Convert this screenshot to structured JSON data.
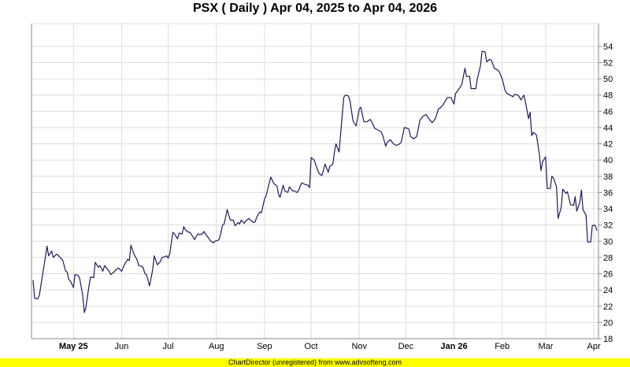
{
  "chart_data": {
    "type": "line",
    "title": "PSX ( Daily ) Apr 04, 2025 to Apr 04, 2026",
    "xlabel": "",
    "ylabel": "",
    "xlim": [
      "2025-04-04",
      "2026-04-04"
    ],
    "ylim": [
      18,
      56.8
    ],
    "y_axis_side": "right",
    "y_ticks": [
      18,
      20,
      22,
      24,
      26,
      28,
      30,
      32,
      34,
      36,
      38,
      40,
      42,
      44,
      46,
      48,
      50,
      52,
      54
    ],
    "x_ticks": [
      {
        "date": "2025-05-01",
        "label": "May 25",
        "bold": true
      },
      {
        "date": "2025-06-01",
        "label": "Jun",
        "bold": false
      },
      {
        "date": "2025-07-01",
        "label": "Jul",
        "bold": false
      },
      {
        "date": "2025-08-01",
        "label": "Aug",
        "bold": false
      },
      {
        "date": "2025-09-01",
        "label": "Sep",
        "bold": false
      },
      {
        "date": "2025-10-01",
        "label": "Oct",
        "bold": false
      },
      {
        "date": "2025-11-01",
        "label": "Nov",
        "bold": false
      },
      {
        "date": "2025-12-01",
        "label": "Dec",
        "bold": false
      },
      {
        "date": "2026-01-01",
        "label": "Jan 26",
        "bold": true
      },
      {
        "date": "2026-02-01",
        "label": "Feb",
        "bold": false
      },
      {
        "date": "2026-03-01",
        "label": "Mar",
        "bold": false
      },
      {
        "date": "2026-04-01",
        "label": "Apr",
        "bold": false
      }
    ],
    "grid": true,
    "line_color": "#1c1c5a",
    "grid_color": "#dddddd",
    "series": [
      {
        "points": [
          [
            "2025-04-05",
            25.2
          ],
          [
            "2025-04-06",
            23.0
          ],
          [
            "2025-04-08",
            22.9
          ],
          [
            "2025-04-09",
            23.3
          ],
          [
            "2025-04-12",
            26.9
          ],
          [
            "2025-04-14",
            29.4
          ],
          [
            "2025-04-15",
            28.2
          ],
          [
            "2025-04-17",
            28.8
          ],
          [
            "2025-04-18",
            28.0
          ],
          [
            "2025-04-20",
            28.4
          ],
          [
            "2025-04-21",
            28.3
          ],
          [
            "2025-04-23",
            27.9
          ],
          [
            "2025-04-24",
            27.7
          ],
          [
            "2025-04-26",
            26.3
          ],
          [
            "2025-04-27",
            26.2
          ],
          [
            "2025-04-28",
            25.3
          ],
          [
            "2025-04-29",
            25.1
          ],
          [
            "2025-05-01",
            24.3
          ],
          [
            "2025-05-02",
            25.9
          ],
          [
            "2025-05-04",
            25.8
          ],
          [
            "2025-05-05",
            25.4
          ],
          [
            "2025-05-07",
            23.3
          ],
          [
            "2025-05-08",
            21.2
          ],
          [
            "2025-05-09",
            21.8
          ],
          [
            "2025-05-11",
            24.5
          ],
          [
            "2025-05-12",
            25.6
          ],
          [
            "2025-05-14",
            25.5
          ],
          [
            "2025-05-15",
            27.4
          ],
          [
            "2025-05-17",
            26.8
          ],
          [
            "2025-05-18",
            27.0
          ],
          [
            "2025-05-20",
            26.3
          ],
          [
            "2025-05-21",
            27.0
          ],
          [
            "2025-05-24",
            26.3
          ],
          [
            "2025-05-25",
            25.9
          ],
          [
            "2025-05-27",
            26.2
          ],
          [
            "2025-05-29",
            26.6
          ],
          [
            "2025-05-30",
            26.7
          ],
          [
            "2025-06-01",
            26.3
          ],
          [
            "2025-06-03",
            27.2
          ],
          [
            "2025-06-05",
            27.8
          ],
          [
            "2025-06-06",
            27.6
          ],
          [
            "2025-06-07",
            29.5
          ],
          [
            "2025-06-09",
            28.4
          ],
          [
            "2025-06-11",
            27.7
          ],
          [
            "2025-06-12",
            27.0
          ],
          [
            "2025-06-14",
            26.9
          ],
          [
            "2025-06-15",
            26.7
          ],
          [
            "2025-06-16",
            26.0
          ],
          [
            "2025-06-17",
            25.9
          ],
          [
            "2025-06-19",
            24.5
          ],
          [
            "2025-06-21",
            26.5
          ],
          [
            "2025-06-22",
            28.2
          ],
          [
            "2025-06-24",
            27.1
          ],
          [
            "2025-06-26",
            27.5
          ],
          [
            "2025-06-27",
            28.0
          ],
          [
            "2025-06-29",
            28.1
          ],
          [
            "2025-06-30",
            28.2
          ],
          [
            "2025-07-01",
            27.9
          ],
          [
            "2025-07-02",
            28.5
          ],
          [
            "2025-07-04",
            31.1
          ],
          [
            "2025-07-05",
            30.9
          ],
          [
            "2025-07-07",
            30.3
          ],
          [
            "2025-07-08",
            31.0
          ],
          [
            "2025-07-10",
            30.9
          ],
          [
            "2025-07-11",
            31.8
          ],
          [
            "2025-07-12",
            31.4
          ],
          [
            "2025-07-14",
            31.1
          ],
          [
            "2025-07-15",
            31.1
          ],
          [
            "2025-07-17",
            30.5
          ],
          [
            "2025-07-18",
            30.2
          ],
          [
            "2025-07-20",
            30.9
          ],
          [
            "2025-07-21",
            30.8
          ],
          [
            "2025-07-23",
            30.9
          ],
          [
            "2025-07-24",
            31.2
          ],
          [
            "2025-07-25",
            30.9
          ],
          [
            "2025-07-27",
            30.4
          ],
          [
            "2025-07-28",
            30.1
          ],
          [
            "2025-07-30",
            29.8
          ],
          [
            "2025-07-31",
            30.0
          ],
          [
            "2025-08-02",
            30.1
          ],
          [
            "2025-08-03",
            30.3
          ],
          [
            "2025-08-05",
            32.0
          ],
          [
            "2025-08-06",
            32.1
          ],
          [
            "2025-08-08",
            33.9
          ],
          [
            "2025-08-09",
            33.2
          ],
          [
            "2025-08-10",
            32.6
          ],
          [
            "2025-08-12",
            32.6
          ],
          [
            "2025-08-13",
            31.9
          ],
          [
            "2025-08-15",
            32.3
          ],
          [
            "2025-08-16",
            32.1
          ],
          [
            "2025-08-17",
            32.6
          ],
          [
            "2025-08-19",
            32.2
          ],
          [
            "2025-08-20",
            32.5
          ],
          [
            "2025-08-22",
            32.8
          ],
          [
            "2025-08-23",
            32.6
          ],
          [
            "2025-08-25",
            32.3
          ],
          [
            "2025-08-26",
            32.4
          ],
          [
            "2025-08-27",
            33.0
          ],
          [
            "2025-08-29",
            33.6
          ],
          [
            "2025-08-30",
            33.5
          ],
          [
            "2025-09-01",
            35.2
          ],
          [
            "2025-09-02",
            35.6
          ],
          [
            "2025-09-05",
            37.9
          ],
          [
            "2025-09-07",
            37.1
          ],
          [
            "2025-09-09",
            36.8
          ],
          [
            "2025-09-10",
            35.8
          ],
          [
            "2025-09-11",
            35.4
          ],
          [
            "2025-09-13",
            36.9
          ],
          [
            "2025-09-14",
            36.2
          ],
          [
            "2025-09-16",
            36.0
          ],
          [
            "2025-09-17",
            36.7
          ],
          [
            "2025-09-19",
            36.2
          ],
          [
            "2025-09-20",
            36.2
          ],
          [
            "2025-09-22",
            36.0
          ],
          [
            "2025-09-23",
            36.3
          ],
          [
            "2025-09-25",
            37.2
          ],
          [
            "2025-09-27",
            37.0
          ],
          [
            "2025-09-29",
            36.9
          ],
          [
            "2025-09-30",
            36.6
          ],
          [
            "2025-10-01",
            40.3
          ],
          [
            "2025-10-03",
            40.0
          ],
          [
            "2025-10-04",
            39.4
          ],
          [
            "2025-10-06",
            38.4
          ],
          [
            "2025-10-07",
            38.2
          ],
          [
            "2025-10-08",
            38.1
          ],
          [
            "2025-10-10",
            39.5
          ],
          [
            "2025-10-12",
            38.5
          ],
          [
            "2025-10-13",
            39.2
          ],
          [
            "2025-10-15",
            39.5
          ],
          [
            "2025-10-16",
            41.0
          ],
          [
            "2025-10-17",
            42.0
          ],
          [
            "2025-10-19",
            41.0
          ],
          [
            "2025-10-22",
            47.7
          ],
          [
            "2025-10-23",
            48.0
          ],
          [
            "2025-10-25",
            47.9
          ],
          [
            "2025-10-26",
            47.3
          ],
          [
            "2025-10-28",
            44.8
          ],
          [
            "2025-10-30",
            44.2
          ],
          [
            "2025-11-01",
            46.3
          ],
          [
            "2025-11-02",
            46.5
          ],
          [
            "2025-11-04",
            44.7
          ],
          [
            "2025-11-06",
            44.7
          ],
          [
            "2025-11-08",
            45.0
          ],
          [
            "2025-11-09",
            44.7
          ],
          [
            "2025-11-11",
            43.9
          ],
          [
            "2025-11-13",
            43.7
          ],
          [
            "2025-11-15",
            43.5
          ],
          [
            "2025-11-16",
            43.1
          ],
          [
            "2025-11-18",
            41.7
          ],
          [
            "2025-11-19",
            42.2
          ],
          [
            "2025-11-21",
            42.5
          ],
          [
            "2025-11-23",
            42.0
          ],
          [
            "2025-11-25",
            41.8
          ],
          [
            "2025-11-27",
            42.0
          ],
          [
            "2025-11-28",
            42.2
          ],
          [
            "2025-11-30",
            44.0
          ],
          [
            "2025-12-02",
            43.9
          ],
          [
            "2025-12-03",
            43.8
          ],
          [
            "2025-12-04",
            42.9
          ],
          [
            "2025-12-06",
            42.6
          ],
          [
            "2025-12-08",
            42.9
          ],
          [
            "2025-12-10",
            44.9
          ],
          [
            "2025-12-12",
            45.4
          ],
          [
            "2025-12-14",
            45.6
          ],
          [
            "2025-12-15",
            45.3
          ],
          [
            "2025-12-17",
            44.8
          ],
          [
            "2025-12-18",
            44.6
          ],
          [
            "2025-12-20",
            45.1
          ],
          [
            "2025-12-22",
            46.3
          ],
          [
            "2025-12-23",
            46.4
          ],
          [
            "2025-12-25",
            46.8
          ],
          [
            "2025-12-27",
            47.5
          ],
          [
            "2025-12-28",
            47.7
          ],
          [
            "2025-12-30",
            47.7
          ],
          [
            "2026-01-01",
            46.9
          ],
          [
            "2026-01-02",
            48.2
          ],
          [
            "2026-01-04",
            48.7
          ],
          [
            "2026-01-06",
            49.3
          ],
          [
            "2026-01-08",
            51.3
          ],
          [
            "2026-01-09",
            50.3
          ],
          [
            "2026-01-11",
            50.3
          ],
          [
            "2026-01-12",
            48.8
          ],
          [
            "2026-01-15",
            48.8
          ],
          [
            "2026-01-16",
            50.0
          ],
          [
            "2026-01-18",
            51.6
          ],
          [
            "2026-01-19",
            53.4
          ],
          [
            "2026-01-21",
            53.3
          ],
          [
            "2026-01-22",
            52.1
          ],
          [
            "2026-01-24",
            52.4
          ],
          [
            "2026-01-25",
            52.3
          ],
          [
            "2026-01-27",
            51.3
          ],
          [
            "2026-01-29",
            51.1
          ],
          [
            "2026-01-30",
            50.9
          ],
          [
            "2026-02-01",
            50.0
          ],
          [
            "2026-02-03",
            48.5
          ],
          [
            "2026-02-04",
            48.2
          ],
          [
            "2026-02-05",
            48.1
          ],
          [
            "2026-02-08",
            47.8
          ],
          [
            "2026-02-09",
            48.1
          ],
          [
            "2026-02-11",
            48.0
          ],
          [
            "2026-02-12",
            47.8
          ],
          [
            "2026-02-13",
            47.4
          ],
          [
            "2026-02-15",
            48.0
          ],
          [
            "2026-02-16",
            47.1
          ],
          [
            "2026-02-18",
            45.1
          ],
          [
            "2026-02-19",
            45.9
          ],
          [
            "2026-02-20",
            43.0
          ],
          [
            "2026-02-21",
            43.4
          ],
          [
            "2026-02-23",
            43.1
          ],
          [
            "2026-02-24",
            41.9
          ],
          [
            "2026-02-25",
            40.6
          ],
          [
            "2026-02-26",
            38.7
          ],
          [
            "2026-02-27",
            39.8
          ],
          [
            "2026-03-01",
            40.4
          ],
          [
            "2026-03-02",
            36.5
          ],
          [
            "2026-03-04",
            36.5
          ],
          [
            "2026-03-05",
            38.0
          ],
          [
            "2026-03-06",
            37.8
          ],
          [
            "2026-03-08",
            36.7
          ],
          [
            "2026-03-09",
            32.8
          ],
          [
            "2026-03-11",
            34.2
          ],
          [
            "2026-03-12",
            36.4
          ],
          [
            "2026-03-14",
            35.9
          ],
          [
            "2026-03-15",
            36.1
          ],
          [
            "2026-03-17",
            34.5
          ],
          [
            "2026-03-19",
            34.4
          ],
          [
            "2026-03-20",
            35.5
          ],
          [
            "2026-03-21",
            33.7
          ],
          [
            "2026-03-23",
            34.8
          ],
          [
            "2026-03-24",
            36.3
          ],
          [
            "2026-03-25",
            33.9
          ],
          [
            "2026-03-27",
            33.2
          ],
          [
            "2026-03-28",
            29.9
          ],
          [
            "2026-03-30",
            29.9
          ],
          [
            "2026-03-31",
            31.9
          ],
          [
            "2026-04-01",
            32.0
          ],
          [
            "2026-04-02",
            31.9
          ],
          [
            "2026-04-03",
            31.3
          ]
        ]
      }
    ]
  },
  "footer": {
    "text": "ChartDirector (unregistered) from www.advsofteng.com",
    "background": "#ffff00"
  }
}
